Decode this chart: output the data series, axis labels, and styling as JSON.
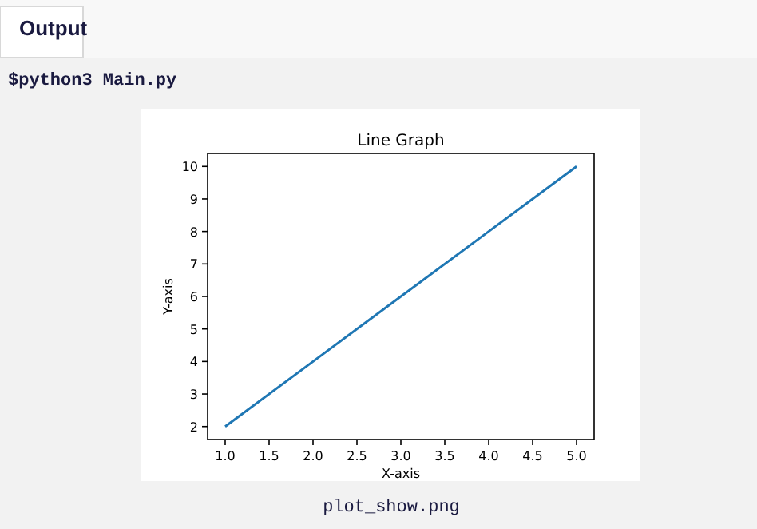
{
  "chart_data": {
    "type": "line",
    "title": "Line Graph",
    "xlabel": "X-axis",
    "ylabel": "Y-axis",
    "x": [
      1,
      2,
      3,
      4,
      5
    ],
    "series": [
      {
        "color": "#1f77b4",
        "values": [
          2,
          4,
          6,
          8,
          10
        ]
      }
    ],
    "xlim": [
      0.8,
      5.2
    ],
    "ylim": [
      1.6,
      10.4
    ],
    "xticks": [
      {
        "value": 1,
        "label": "1.0"
      },
      {
        "value": 1.5,
        "label": "1.5"
      },
      {
        "value": 2,
        "label": "2.0"
      },
      {
        "value": 2.5,
        "label": "2.5"
      },
      {
        "value": 3,
        "label": "3.0"
      },
      {
        "value": 3.5,
        "label": "3.5"
      },
      {
        "value": 4,
        "label": "4.0"
      },
      {
        "value": 4.5,
        "label": "4.5"
      },
      {
        "value": 5,
        "label": "5.0"
      }
    ],
    "yticks": [
      2,
      3,
      4,
      5,
      6,
      7,
      8,
      9,
      10
    ],
    "grid": false,
    "marker": "none",
    "line_style": "solid",
    "annotations": [
      "Output",
      "$python3 Main.py",
      "plot_show.png"
    ]
  }
}
